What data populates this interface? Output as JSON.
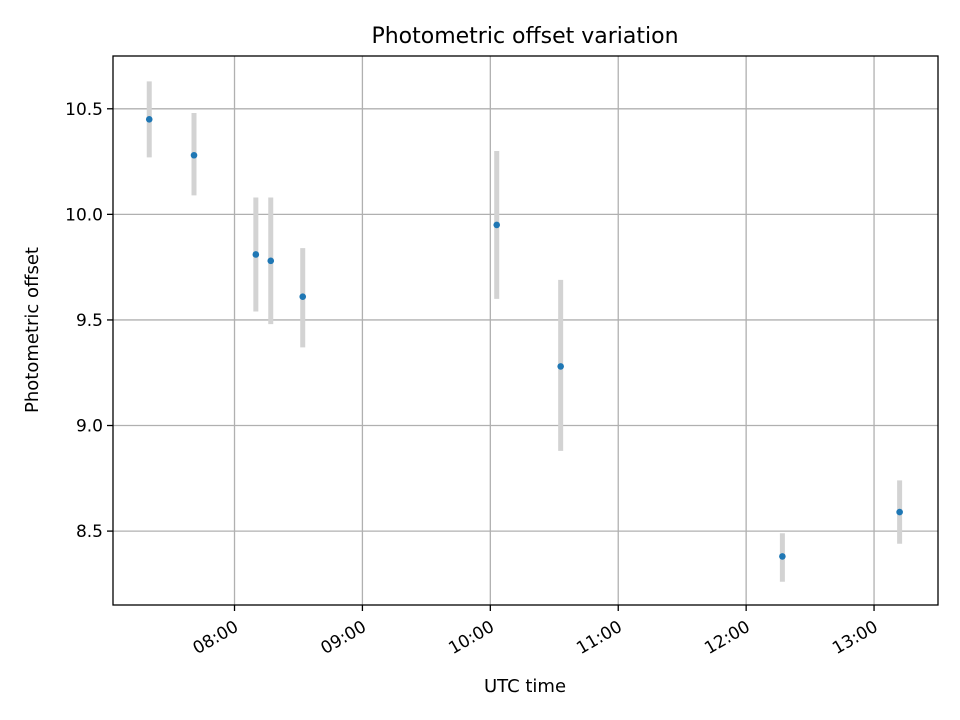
{
  "chart_data": {
    "type": "scatter",
    "title": "Photometric offset variation",
    "xlabel": "UTC time",
    "ylabel": "Photometric offset",
    "x_ticks": [
      "08:00",
      "09:00",
      "10:00",
      "11:00",
      "12:00",
      "13:00"
    ],
    "y_ticks": [
      8.5,
      9.0,
      9.5,
      10.0,
      10.5
    ],
    "xlim": [
      "07:03",
      "13:30"
    ],
    "ylim": [
      8.15,
      10.75
    ],
    "grid": true,
    "marker_color": "#1f77b4",
    "errorbar_color": "#d3d3d3",
    "points": [
      {
        "x": "07:20",
        "y": 10.45,
        "yerr_low": 10.27,
        "yerr_high": 10.63
      },
      {
        "x": "07:41",
        "y": 10.28,
        "yerr_low": 10.09,
        "yerr_high": 10.48
      },
      {
        "x": "08:10",
        "y": 9.81,
        "yerr_low": 9.54,
        "yerr_high": 10.08
      },
      {
        "x": "08:17",
        "y": 9.78,
        "yerr_low": 9.48,
        "yerr_high": 10.08
      },
      {
        "x": "08:32",
        "y": 9.61,
        "yerr_low": 9.37,
        "yerr_high": 9.84
      },
      {
        "x": "10:03",
        "y": 9.95,
        "yerr_low": 9.6,
        "yerr_high": 10.3
      },
      {
        "x": "10:33",
        "y": 9.28,
        "yerr_low": 8.88,
        "yerr_high": 9.69
      },
      {
        "x": "12:17",
        "y": 8.38,
        "yerr_low": 8.26,
        "yerr_high": 8.49
      },
      {
        "x": "13:12",
        "y": 8.59,
        "yerr_low": 8.44,
        "yerr_high": 8.74
      }
    ]
  }
}
